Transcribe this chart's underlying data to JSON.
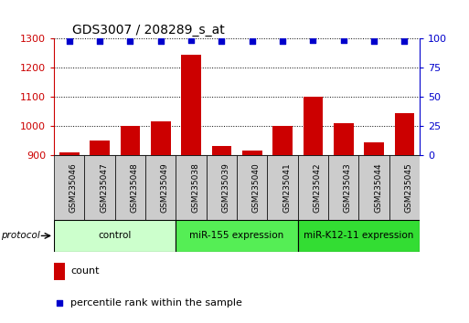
{
  "title": "GDS3007 / 208289_s_at",
  "samples": [
    "GSM235046",
    "GSM235047",
    "GSM235048",
    "GSM235049",
    "GSM235038",
    "GSM235039",
    "GSM235040",
    "GSM235041",
    "GSM235042",
    "GSM235043",
    "GSM235044",
    "GSM235045"
  ],
  "bar_values": [
    910,
    950,
    1000,
    1015,
    1245,
    930,
    915,
    1000,
    1100,
    1010,
    945,
    1045
  ],
  "percentile_values": [
    98,
    98,
    98,
    98,
    99,
    98,
    98,
    98,
    99,
    99,
    98,
    98
  ],
  "bar_color": "#cc0000",
  "dot_color": "#0000cc",
  "ylim_left": [
    900,
    1300
  ],
  "ylim_right": [
    0,
    100
  ],
  "yticks_left": [
    900,
    1000,
    1100,
    1200,
    1300
  ],
  "yticks_right": [
    0,
    25,
    50,
    75,
    100
  ],
  "groups": [
    {
      "label": "control",
      "start": 0,
      "end": 4,
      "color": "#ccffcc"
    },
    {
      "label": "miR-155 expression",
      "start": 4,
      "end": 8,
      "color": "#55ee55"
    },
    {
      "label": "miR-K12-11 expression",
      "start": 8,
      "end": 12,
      "color": "#33dd33"
    }
  ],
  "protocol_label": "protocol",
  "legend_count_label": "count",
  "legend_pct_label": "percentile rank within the sample",
  "sample_box_color": "#cccccc",
  "bg_color": "#ffffff"
}
